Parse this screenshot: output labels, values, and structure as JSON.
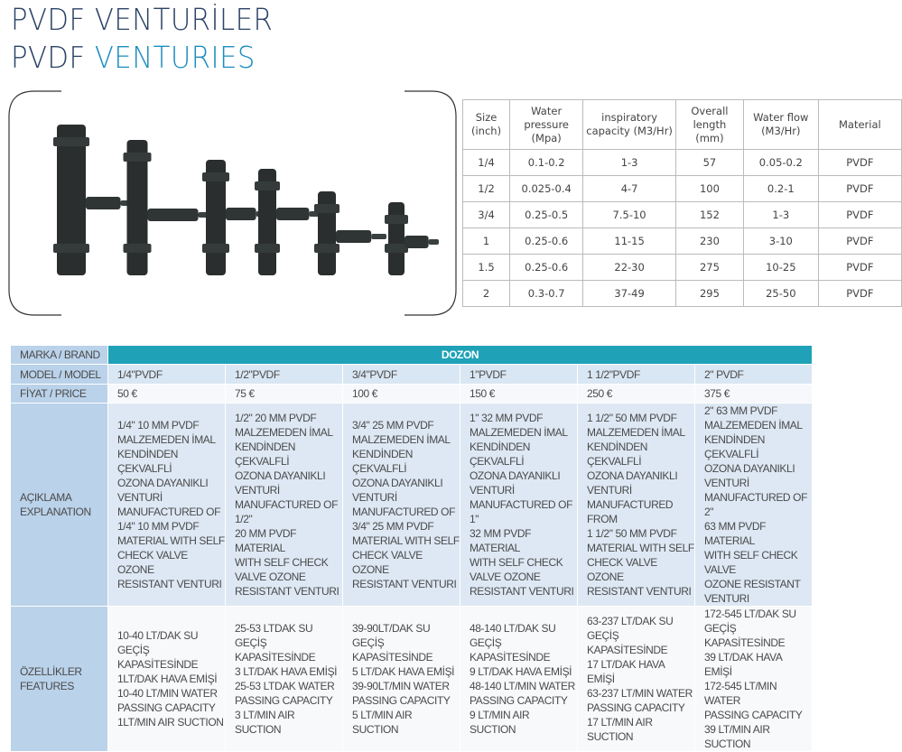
{
  "title": {
    "line1": "PVDF VENTURİLER",
    "line2_prefix": "PVDF",
    "line2_accent": "VENTURIES"
  },
  "colors": {
    "title_dark": "#2b4266",
    "title_accent": "#1e8dc0",
    "brand_header": "#1fa2b7",
    "label_column": "#bad2ea"
  },
  "photo": {
    "icon": "venturi-product-photo",
    "count": 6
  },
  "spec_table": {
    "headers": [
      "Size\n(inch)",
      "Water\npressure\n(Mpa)",
      "inspiratory\ncapacity (M3/Hr)",
      "Overall\nlength (mm)",
      "Water flow\n(M3/Hr)",
      "Material"
    ],
    "rows": [
      [
        "1/4",
        "0.1-0.2",
        "1-3",
        "57",
        "0.05-0.2",
        "PVDF"
      ],
      [
        "1/2",
        "0.025-0.4",
        "4-7",
        "100",
        "0.2-1",
        "PVDF"
      ],
      [
        "3/4",
        "0.25-0.5",
        "7.5-10",
        "152",
        "1-3",
        "PVDF"
      ],
      [
        "1",
        "0.25-0.6",
        "11-15",
        "230",
        "3-10",
        "PVDF"
      ],
      [
        "1.5",
        "0.25-0.6",
        "22-30",
        "275",
        "10-25",
        "PVDF"
      ],
      [
        "2",
        "0.3-0.7",
        "37-49",
        "295",
        "25-50",
        "PVDF"
      ]
    ]
  },
  "brand_table": {
    "labels": {
      "brand": "MARKA / BRAND",
      "model": "MODEL / MODEL",
      "price": "FİYAT / PRICE",
      "desc": "AÇIKLAMA\nEXPLANATION",
      "features": "ÖZELLİKLER\nFEATURES"
    },
    "brand": "DOZON",
    "models": [
      "1/4\"PVDF",
      "1/2\"PVDF",
      "3/4\"PVDF",
      "1\"PVDF",
      "1 1/2\"PVDF",
      "2\" PVDF"
    ],
    "prices": [
      "50 €",
      "75 €",
      "100 €",
      "150 €",
      "250 €",
      "375 €"
    ],
    "descriptions": [
      "1/4\" 10 MM PVDF\nMALZEMEDEN İMAL\nKENDİNDEN ÇEKVALFLİ\nOZONA DAYANIKLI\nVENTURİ\nMANUFACTURED OF\n1/4\" 10 MM PVDF\nMATERIAL WITH SELF\nCHECK VALVE OZONE\nRESISTANT VENTURI",
      "1/2\" 20 MM PVDF\nMALZEMEDEN İMAL\nKENDİNDEN ÇEKVALFLİ\nOZONA DAYANIKLI\nVENTURİ\nMANUFACTURED OF 1/2\"\n20 MM PVDF MATERIAL\nWITH SELF CHECK\nVALVE OZONE\nRESISTANT VENTURI",
      "3/4\" 25 MM PVDF\nMALZEMEDEN İMAL\nKENDİNDEN ÇEKVALFLİ\nOZONA DAYANIKLI\nVENTURİ\nMANUFACTURED OF\n3/4\" 25 MM PVDF\nMATERIAL WITH SELF\nCHECK VALVE OZONE\nRESISTANT VENTURI",
      "1\" 32 MM PVDF\nMALZEMEDEN İMAL\nKENDİNDEN ÇEKVALFLİ\nOZONA DAYANIKLI\nVENTURİ\nMANUFACTURED OF 1\"\n32 MM PVDF MATERIAL\nWITH SELF CHECK\nVALVE OZONE\nRESISTANT VENTURI",
      "1 1/2\" 50 MM PVDF\nMALZEMEDEN İMAL\nKENDİNDEN ÇEKVALFLİ\nOZONA DAYANIKLI\nVENTURİ\nMANUFACTURED FROM\n1 1/2\" 50 MM PVDF\nMATERIAL WITH SELF\nCHECK VALVE OZONE\nRESISTANT VENTURI",
      "2\" 63 MM PVDF\nMALZEMEDEN İMAL\nKENDİNDEN ÇEKVALFLİ\nOZONA DAYANIKLI\nVENTURİ\nMANUFACTURED OF 2\"\n63 MM PVDF MATERIAL\nWITH SELF CHECK VALVE\nOZONE RESISTANT\nVENTURI"
    ],
    "features": [
      "10-40 LT/DAK SU\nGEÇİŞ KAPASİTESİNDE\n1LT/DAK HAVA EMİŞİ\n10-40 LT/MIN WATER\nPASSING CAPACITY\n1LT/MIN AIR SUCTION",
      "25-53 LTDAK SU GEÇİŞ\nKAPASİTESİNDE\n3 LT/DAK HAVA EMİŞİ\n25-53 LTDAK WATER\nPASSING CAPACITY\n3 LT/MIN AIR SUCTION",
      "39-90LT/DAK SU GEÇİŞ\nKAPASİTESİNDE\n5 LT/DAK HAVA EMİŞİ\n39-90LT/MIN WATER\nPASSING CAPACITY\n5 LT/MIN AIR SUCTION",
      "48-140 LT/DAK SU\nGEÇİŞ KAPASİTESİNDE\n9 LT/DAK HAVA EMİŞİ\n48-140 LT/MIN WATER\nPASSING CAPACITY\n9 LT/MIN AIR SUCTION",
      "63-237 LT/DAK SU\nGEÇİŞ KAPASİTESİNDE\n17 LT/DAK HAVA EMİŞİ\n63-237 LT/MIN WATER\nPASSING CAPACITY\n17 LT/MIN AIR SUCTION",
      "172-545 LT/DAK SU\nGEÇİŞ KAPASİTESİNDE\n39 LT/DAK HAVA EMİŞİ\n172-545 LT/MIN WATER\nPASSING CAPACITY\n39 LT/MIN AIR SUCTION"
    ]
  }
}
